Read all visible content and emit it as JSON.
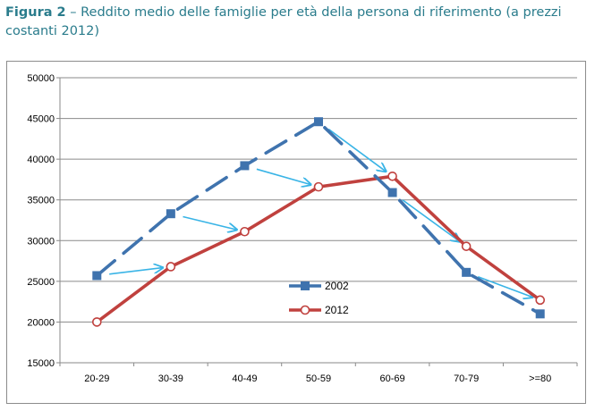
{
  "caption": {
    "figure_label": "Figura 2",
    "text": " – Reddito medio delle famiglie per età della persona di riferimento (a prezzi costanti 2012)"
  },
  "colors": {
    "series_2002": "#3f73ae",
    "series_2012": "#c0413e",
    "arrows": "#39b4e6",
    "caption": "#2a7c8c"
  },
  "chart_data": {
    "type": "line",
    "categories": [
      "20-29",
      "30-39",
      "40-49",
      "50-59",
      "60-69",
      "70-79",
      ">=80"
    ],
    "ylim": [
      15000,
      50000
    ],
    "yticks": [
      15000,
      20000,
      25000,
      30000,
      35000,
      40000,
      45000,
      50000
    ],
    "grid": true,
    "legend_position": "center",
    "series": [
      {
        "name": "2002",
        "style": "dashed",
        "marker": "square",
        "values": [
          25700,
          33300,
          39200,
          44600,
          35900,
          26100,
          21000
        ]
      },
      {
        "name": "2012",
        "style": "solid",
        "marker": "circle",
        "values": [
          20000,
          26800,
          31100,
          36600,
          37900,
          29300,
          22700
        ]
      }
    ],
    "annotations": "arrows from each 2002 point to the next-age-class 2012 point"
  }
}
